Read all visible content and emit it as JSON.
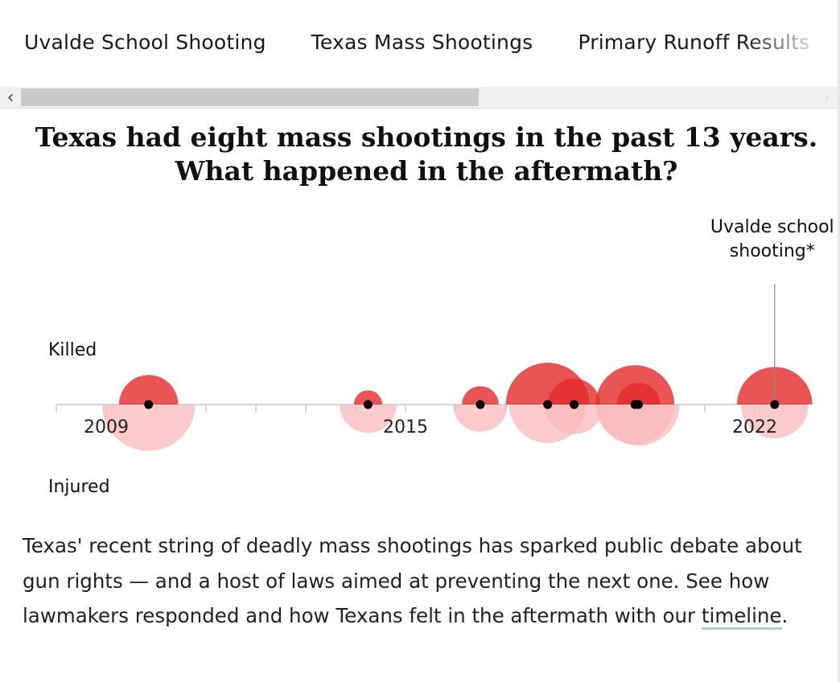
{
  "nav": {
    "items": [
      "Uvalde School Shooting",
      "Texas Mass Shootings",
      "Primary Runoff Results"
    ]
  },
  "headline": {
    "line1": "Texas had eight mass shootings in the past 13 years.",
    "line2": "What happened in the aftermath?"
  },
  "chart_data": {
    "type": "bubble-timeline",
    "labels": {
      "top": "Killed",
      "bottom": "Injured"
    },
    "annotation": {
      "line1": "Uvalde school",
      "line2": "shooting*"
    },
    "x_tick_labels": [
      "2009",
      "2015",
      "2022"
    ],
    "xlim": [
      2008.0,
      2023.0
    ],
    "colors": {
      "killed": "#e32a2a",
      "injured": "#f9b8ba",
      "axis": "#cccccc"
    },
    "events": [
      {
        "date": 2009.85,
        "killed": 13,
        "injured": 32
      },
      {
        "date": 2014.25,
        "killed": 3,
        "injured": 12
      },
      {
        "date": 2016.5,
        "killed": 5,
        "injured": 11
      },
      {
        "date": 2017.85,
        "killed": 26,
        "injured": 22
      },
      {
        "date": 2018.38,
        "killed": 10,
        "injured": 13
      },
      {
        "date": 2019.6,
        "killed": 23,
        "injured": 23
      },
      {
        "date": 2019.67,
        "killed": 7,
        "injured": 25
      },
      {
        "date": 2022.4,
        "killed": 21,
        "injured": 17
      }
    ]
  },
  "body": {
    "text": "Texas' recent string of deadly mass shootings has sparked public debate about gun rights — and a host of laws aimed at preventing the next one. See how lawmakers responded and how Texans felt in the aftermath with our",
    "link": "timeline",
    "end": "."
  }
}
